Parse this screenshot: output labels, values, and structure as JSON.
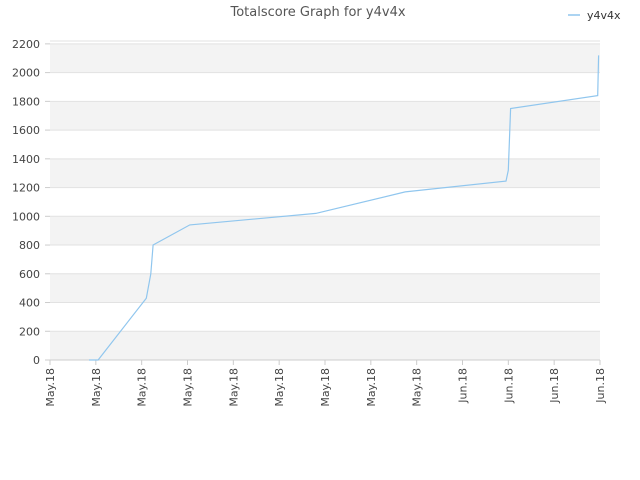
{
  "chart_data": {
    "type": "line",
    "title": "Totalscore Graph for y4v4x",
    "xlabel": "",
    "ylabel": "",
    "legend_position": "top-right",
    "grid": true,
    "band_colors": [
      "#f3f3f3",
      "#ffffff"
    ],
    "line_color": "#90c6ee",
    "ylim": [
      0,
      2220
    ],
    "yticks": [
      0,
      200,
      400,
      600,
      800,
      1000,
      1200,
      1400,
      1600,
      1800,
      2000,
      2200
    ],
    "xlim": [
      0,
      12
    ],
    "xticks": [
      {
        "x": 0,
        "label": "May.18"
      },
      {
        "x": 1,
        "label": "May.18"
      },
      {
        "x": 2,
        "label": "May.18"
      },
      {
        "x": 3,
        "label": "May.18"
      },
      {
        "x": 4,
        "label": "May.18"
      },
      {
        "x": 5,
        "label": "May.18"
      },
      {
        "x": 6,
        "label": "May.18"
      },
      {
        "x": 7,
        "label": "May.18"
      },
      {
        "x": 8,
        "label": "May.18"
      },
      {
        "x": 9,
        "label": "Jun.18"
      },
      {
        "x": 10,
        "label": "Jun.18"
      },
      {
        "x": 11,
        "label": "Jun.18"
      },
      {
        "x": 12,
        "label": "Jun.18"
      }
    ],
    "series": [
      {
        "name": "y4v4x",
        "points": [
          [
            0.85,
            0
          ],
          [
            1.05,
            0
          ],
          [
            2.1,
            430
          ],
          [
            2.2,
            600
          ],
          [
            2.25,
            800
          ],
          [
            3.05,
            940
          ],
          [
            5.8,
            1020
          ],
          [
            7.75,
            1170
          ],
          [
            9.95,
            1245
          ],
          [
            10.0,
            1320
          ],
          [
            10.05,
            1750
          ],
          [
            11.95,
            1840
          ],
          [
            11.97,
            2120
          ]
        ]
      }
    ]
  }
}
